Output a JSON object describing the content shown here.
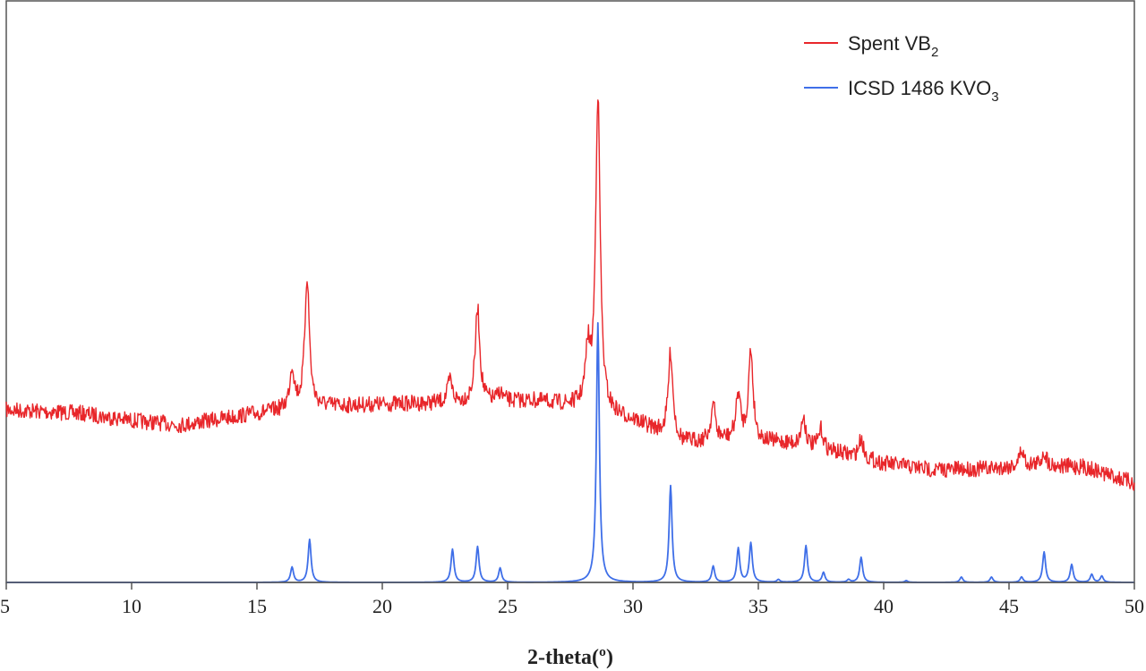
{
  "chart_data": {
    "type": "line",
    "title": "",
    "xlabel": "2-theta(º)",
    "ylabel": "",
    "xlim": [
      5,
      50
    ],
    "x_ticks": [
      "5",
      "10",
      "15",
      "20",
      "25",
      "30",
      "35",
      "40",
      "45",
      "50"
    ],
    "y_ticks_shown": false,
    "grid": false,
    "legend_position": "top-right",
    "series": [
      {
        "name": "Spent VB",
        "name_subscript": "2",
        "color": "#e8262a",
        "baseline": 540,
        "baseline_note": "red trace sits on a raised background; intensities in relative units",
        "background": [
          [
            5,
            458
          ],
          [
            8,
            462
          ],
          [
            10,
            470
          ],
          [
            12,
            475
          ],
          [
            15,
            462
          ],
          [
            17,
            455
          ],
          [
            20,
            452
          ],
          [
            23,
            450
          ],
          [
            26,
            448
          ],
          [
            28,
            455
          ],
          [
            30,
            470
          ],
          [
            32,
            495
          ],
          [
            34,
            492
          ],
          [
            36,
            495
          ],
          [
            38,
            505
          ],
          [
            40,
            518
          ],
          [
            42,
            525
          ],
          [
            44,
            524
          ],
          [
            46,
            520
          ],
          [
            48,
            522
          ],
          [
            50,
            540
          ]
        ],
        "peaks": [
          {
            "x": 16.4,
            "h": 45
          },
          {
            "x": 17.0,
            "h": 145
          },
          {
            "x": 22.7,
            "h": 25
          },
          {
            "x": 23.8,
            "h": 105
          },
          {
            "x": 24.7,
            "h": 10
          },
          {
            "x": 28.2,
            "h": 60
          },
          {
            "x": 28.6,
            "h": 350
          },
          {
            "x": 31.5,
            "h": 95
          },
          {
            "x": 33.2,
            "h": 40
          },
          {
            "x": 34.2,
            "h": 50
          },
          {
            "x": 34.7,
            "h": 100
          },
          {
            "x": 36.8,
            "h": 32
          },
          {
            "x": 37.5,
            "h": 22
          },
          {
            "x": 39.1,
            "h": 22
          },
          {
            "x": 45.5,
            "h": 18
          },
          {
            "x": 46.4,
            "h": 15
          }
        ]
      },
      {
        "name": "ICSD 1486 KVO",
        "name_subscript": "3",
        "color": "#3f6fe8",
        "baseline": 0,
        "peaks": [
          {
            "x": 16.4,
            "h": 17
          },
          {
            "x": 17.1,
            "h": 48
          },
          {
            "x": 22.8,
            "h": 37
          },
          {
            "x": 23.8,
            "h": 40
          },
          {
            "x": 24.7,
            "h": 16
          },
          {
            "x": 28.6,
            "h": 290
          },
          {
            "x": 31.5,
            "h": 108
          },
          {
            "x": 33.2,
            "h": 18
          },
          {
            "x": 34.2,
            "h": 38
          },
          {
            "x": 34.7,
            "h": 44
          },
          {
            "x": 35.8,
            "h": 3
          },
          {
            "x": 36.9,
            "h": 41
          },
          {
            "x": 37.6,
            "h": 11
          },
          {
            "x": 38.6,
            "h": 3
          },
          {
            "x": 39.1,
            "h": 28
          },
          {
            "x": 40.9,
            "h": 2
          },
          {
            "x": 43.1,
            "h": 6
          },
          {
            "x": 44.3,
            "h": 6
          },
          {
            "x": 45.5,
            "h": 6
          },
          {
            "x": 46.4,
            "h": 34
          },
          {
            "x": 47.5,
            "h": 20
          },
          {
            "x": 48.3,
            "h": 9
          },
          {
            "x": 48.7,
            "h": 7
          }
        ]
      }
    ]
  }
}
